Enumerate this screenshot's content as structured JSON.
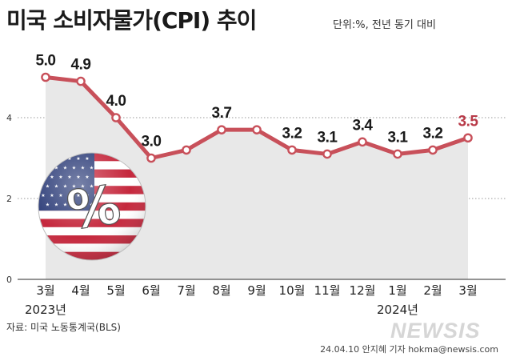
{
  "header": {
    "title": "미국 소비자물가(CPI) 추이",
    "subtitle": "단위:%, 전년 동기 대비"
  },
  "footer": {
    "source": "자료: 미국 노동통계국(BLS)",
    "credit": "24.04.10 안지혜 기자 hokma@newsis.com",
    "watermark": "NEWSIS"
  },
  "colors": {
    "line": "#c8505a",
    "highlight": "#b83a48",
    "area": "#e8e8e8",
    "text": "#1a1a1a"
  },
  "icon": "us-flag-percent-icon",
  "chart_data": {
    "type": "line",
    "categories": [
      "3월",
      "4월",
      "5월",
      "6월",
      "7월",
      "8월",
      "9월",
      "10월",
      "11월",
      "12월",
      "1월",
      "2월",
      "3월"
    ],
    "year_labels": [
      {
        "index": 0,
        "label": "2023년"
      },
      {
        "index": 10,
        "label": "2024년"
      }
    ],
    "values": [
      5.0,
      4.9,
      4.0,
      3.0,
      3.2,
      3.7,
      3.7,
      3.2,
      3.1,
      3.4,
      3.1,
      3.2,
      3.5
    ],
    "data_labels": [
      "5.0",
      "4.9",
      "4.0",
      "3.0",
      "",
      "3.7",
      "",
      "3.2",
      "3.1",
      "3.4",
      "3.1",
      "3.2",
      "3.5"
    ],
    "highlight_index": 12,
    "ylim": [
      0,
      6
    ],
    "yticks": [
      0,
      2,
      4
    ],
    "grid": true,
    "unit": "%"
  }
}
